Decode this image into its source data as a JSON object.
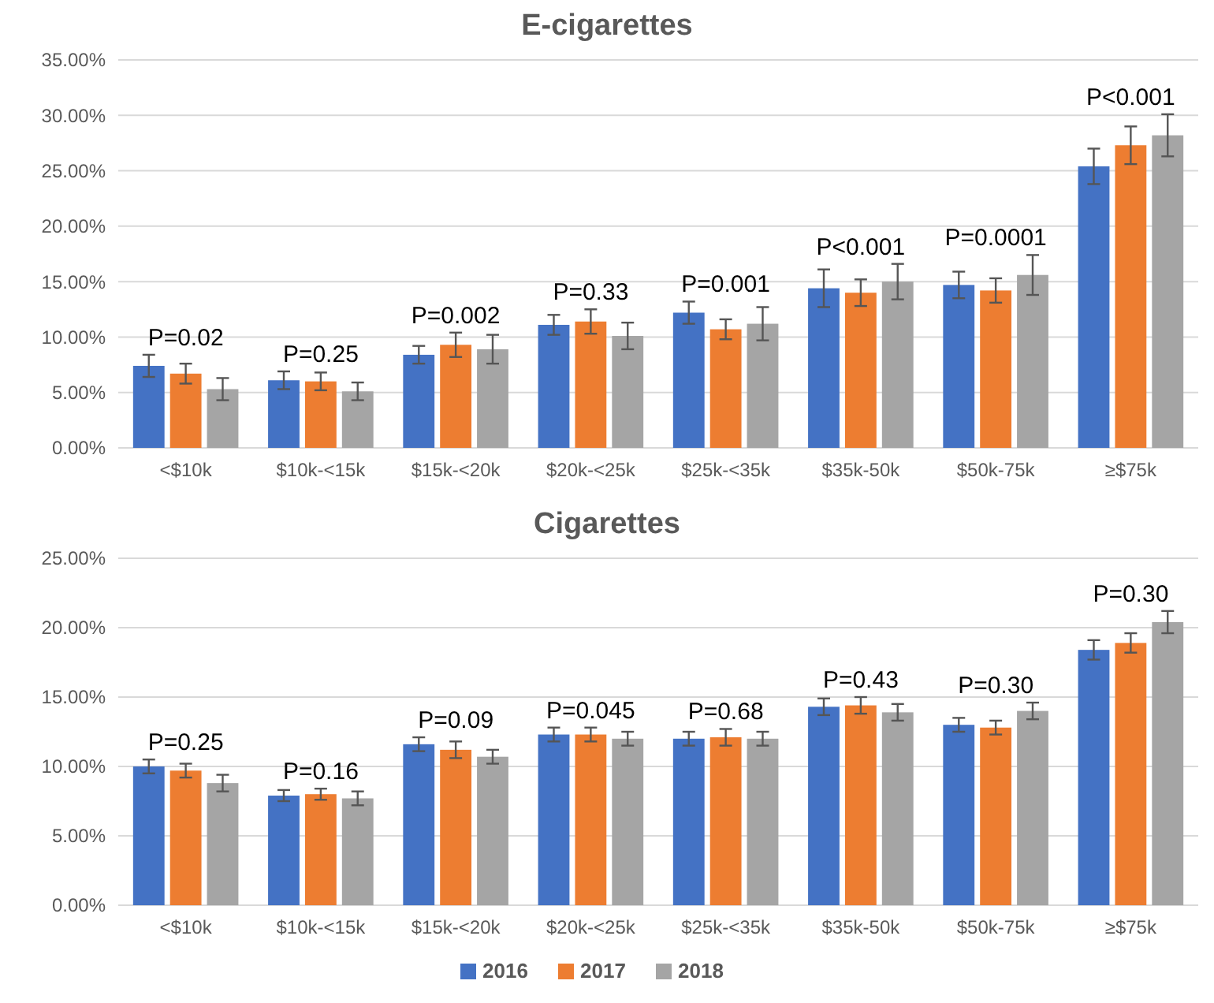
{
  "chart_data": [
    {
      "type": "bar",
      "title": "E-cigarettes",
      "categories": [
        "<$10k",
        "$10k-<15k",
        "$15k-<20k",
        "$20k-<25k",
        "$25k-<35k",
        "$35k-50k",
        "$50k-75k",
        "≥$75k"
      ],
      "series": [
        {
          "color": "#4472c4",
          "values": [
            7.4,
            6.1,
            8.4,
            11.1,
            12.2,
            14.4,
            14.7,
            25.4
          ],
          "errors": [
            1.0,
            0.8,
            0.8,
            0.9,
            1.0,
            1.7,
            1.2,
            1.6
          ]
        },
        {
          "color": "#ed7d31",
          "values": [
            6.7,
            6.0,
            9.3,
            11.4,
            10.7,
            14.0,
            14.2,
            27.3
          ],
          "errors": [
            0.9,
            0.8,
            1.1,
            1.1,
            0.9,
            1.2,
            1.1,
            1.7
          ]
        },
        {
          "color": "#a5a5a5",
          "values": [
            5.3,
            5.1,
            8.9,
            10.1,
            11.2,
            15.0,
            15.6,
            28.2
          ],
          "errors": [
            1.0,
            0.8,
            1.3,
            1.2,
            1.5,
            1.6,
            1.8,
            1.9
          ]
        }
      ],
      "ylim": [
        0,
        35
      ],
      "yticks": [
        {
          "value": 0,
          "label": "0.00%"
        },
        {
          "value": 5,
          "label": "5.00%"
        },
        {
          "value": 10,
          "label": "10.00%"
        },
        {
          "value": 15,
          "label": "15.00%"
        },
        {
          "value": 20,
          "label": "20.00%"
        },
        {
          "value": 25,
          "label": "25.00%"
        },
        {
          "value": 30,
          "label": "30.00%"
        },
        {
          "value": 35,
          "label": "35.00%"
        }
      ],
      "grid": "y",
      "legend": false,
      "annotations": [
        "P=0.02",
        "P=0.25",
        "P=0.002",
        "P=0.33",
        "P=0.001",
        "P<0.001",
        "P=0.0001",
        "P<0.001"
      ]
    },
    {
      "type": "bar",
      "title": "Cigarettes",
      "categories": [
        "<$10k",
        "$10k-<15k",
        "$15k-<20k",
        "$20k-<25k",
        "$25k-<35k",
        "$35k-50k",
        "$50k-75k",
        "≥$75k"
      ],
      "series": [
        {
          "name": "2016",
          "color": "#4472c4",
          "values": [
            10.0,
            7.9,
            11.6,
            12.3,
            12.0,
            14.3,
            13.0,
            18.4
          ],
          "errors": [
            0.5,
            0.4,
            0.5,
            0.5,
            0.5,
            0.6,
            0.5,
            0.7
          ]
        },
        {
          "name": "2017",
          "color": "#ed7d31",
          "values": [
            9.7,
            8.0,
            11.2,
            12.3,
            12.1,
            14.4,
            12.8,
            18.9
          ],
          "errors": [
            0.5,
            0.4,
            0.6,
            0.5,
            0.6,
            0.6,
            0.5,
            0.7
          ]
        },
        {
          "name": "2018",
          "color": "#a5a5a5",
          "values": [
            8.8,
            7.7,
            10.7,
            12.0,
            12.0,
            13.9,
            14.0,
            20.4
          ],
          "errors": [
            0.6,
            0.5,
            0.5,
            0.5,
            0.5,
            0.6,
            0.6,
            0.8
          ]
        }
      ],
      "ylim": [
        0,
        25
      ],
      "yticks": [
        {
          "value": 0,
          "label": "0.00%"
        },
        {
          "value": 5,
          "label": "5.00%"
        },
        {
          "value": 10,
          "label": "10.00%"
        },
        {
          "value": 15,
          "label": "15.00%"
        },
        {
          "value": 20,
          "label": "20.00%"
        },
        {
          "value": 25,
          "label": "25.00%"
        }
      ],
      "grid": "y",
      "legend": "bottom",
      "annotations": [
        "P=0.25",
        "P=0.16",
        "P=0.09",
        "P=0.045",
        "P=0.68",
        "P=0.43",
        "P=0.30",
        "P=0.30"
      ]
    }
  ]
}
